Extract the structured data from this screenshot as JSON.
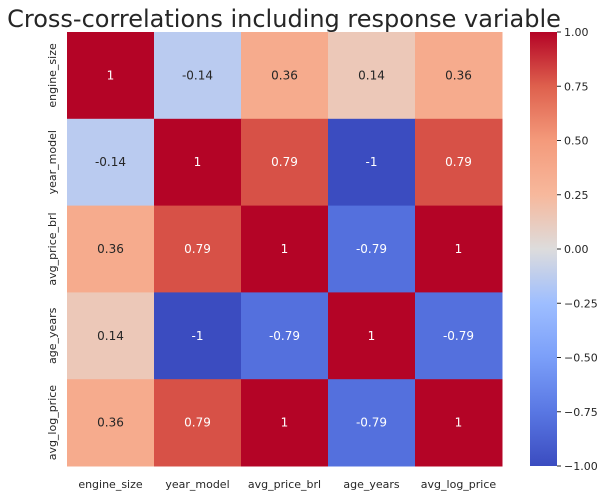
{
  "chart_data": {
    "type": "heatmap",
    "title": "Cross-correlations including response variable",
    "xlabel": "",
    "ylabel": "",
    "x_categories": [
      "engine_size",
      "year_model",
      "avg_price_brl",
      "age_years",
      "avg_log_price"
    ],
    "y_categories": [
      "engine_size",
      "year_model",
      "avg_price_brl",
      "age_years",
      "avg_log_price"
    ],
    "values": [
      [
        1,
        -0.14,
        0.36,
        0.14,
        0.36
      ],
      [
        -0.14,
        1,
        0.79,
        -1,
        0.79
      ],
      [
        0.36,
        0.79,
        1,
        -0.79,
        1
      ],
      [
        0.14,
        -1,
        -0.79,
        1,
        -0.79
      ],
      [
        0.36,
        0.79,
        1,
        -0.79,
        1
      ]
    ],
    "cell_labels": [
      [
        "1",
        "-0.14",
        "0.36",
        "0.14",
        "0.36"
      ],
      [
        "-0.14",
        "1",
        "0.79",
        "-1",
        "0.79"
      ],
      [
        "0.36",
        "0.79",
        "1",
        "-0.79",
        "1"
      ],
      [
        "0.14",
        "-1",
        "-0.79",
        "1",
        "-0.79"
      ],
      [
        "0.36",
        "0.79",
        "1",
        "-0.79",
        "1"
      ]
    ],
    "colormap": "coolwarm",
    "vmin": -1,
    "vmax": 1,
    "colorbar_ticks": [
      {
        "value": 1,
        "label": "1.00"
      },
      {
        "value": 0.75,
        "label": "0.75"
      },
      {
        "value": 0.5,
        "label": "0.50"
      },
      {
        "value": 0.25,
        "label": "0.25"
      },
      {
        "value": 0,
        "label": "0.00"
      },
      {
        "value": -0.25,
        "label": "−0.25"
      },
      {
        "value": -0.5,
        "label": "−0.50"
      },
      {
        "value": -0.75,
        "label": "−0.75"
      },
      {
        "value": -1,
        "label": "−1.00"
      }
    ]
  }
}
